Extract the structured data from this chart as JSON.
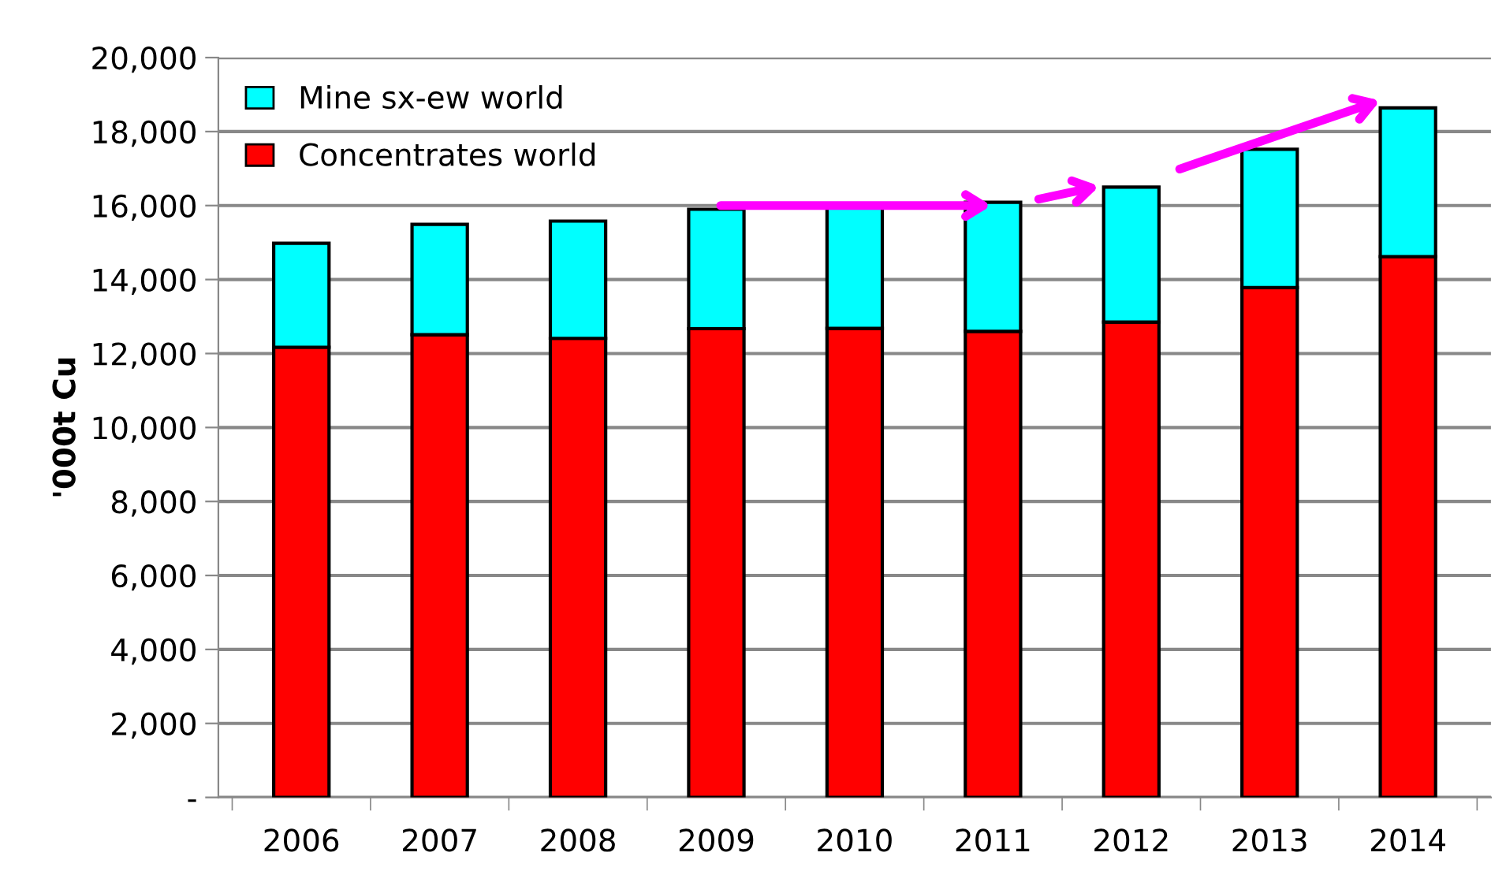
{
  "chart_data": {
    "type": "bar",
    "stacked": true,
    "ylabel": "'000t Cu",
    "categories": [
      "2006",
      "2007",
      "2008",
      "2009",
      "2010",
      "2011",
      "2012",
      "2013",
      "2014"
    ],
    "series": [
      {
        "name": "Concentrates world",
        "color": "#ff0000",
        "values": [
          12170,
          12510,
          12410,
          12670,
          12680,
          12600,
          12850,
          13780,
          14620
        ]
      },
      {
        "name": "Mine sx-ew world",
        "color": "#00ffff",
        "values": [
          2810,
          2980,
          3170,
          3230,
          3270,
          3490,
          3650,
          3740,
          4020
        ]
      }
    ],
    "ylim": [
      0,
      20000
    ],
    "yticks": [
      {
        "value": 0,
        "label": "-"
      },
      {
        "value": 2000,
        "label": "2,000"
      },
      {
        "value": 4000,
        "label": "4,000"
      },
      {
        "value": 6000,
        "label": "6,000"
      },
      {
        "value": 8000,
        "label": "8,000"
      },
      {
        "value": 10000,
        "label": "10,000"
      },
      {
        "value": 12000,
        "label": "12,000"
      },
      {
        "value": 14000,
        "label": "14,000"
      },
      {
        "value": 16000,
        "label": "16,000"
      },
      {
        "value": 18000,
        "label": "18,000"
      },
      {
        "value": 20000,
        "label": "20,000"
      }
    ],
    "grid": "y",
    "legend": "top left"
  }
}
